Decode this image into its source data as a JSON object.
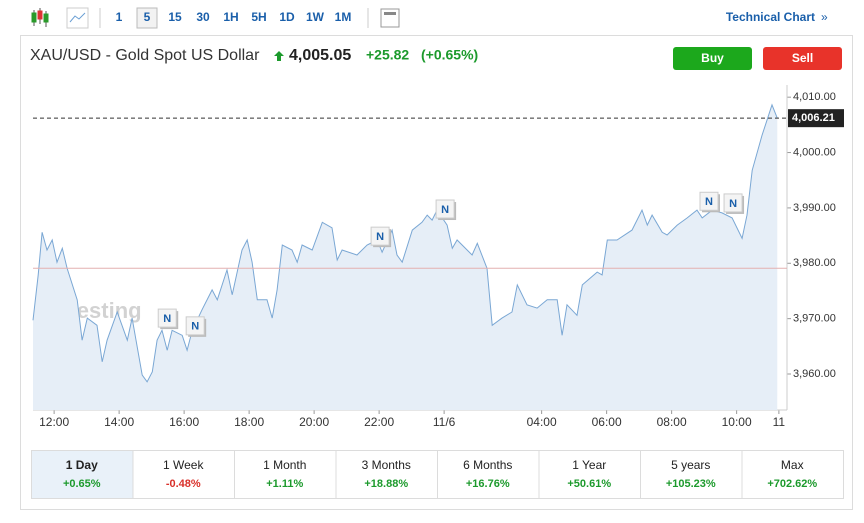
{
  "toolbar": {
    "intervals": [
      "1",
      "5",
      "15",
      "30",
      "1H",
      "5H",
      "1D",
      "1W",
      "1M"
    ],
    "link": "Technical Chart"
  },
  "header": {
    "symbol": "XAU/USD - Gold Spot US Dollar",
    "price": "4,005.05",
    "change": "+25.82",
    "change_pct": "(+0.65%)"
  },
  "buttons": [
    "Buy",
    "Sell"
  ],
  "chart_data": {
    "type": "line",
    "watermark": "Investing",
    "color": "#7aa7d4",
    "x": [
      -0.65,
      -0.49,
      -0.37,
      -0.22,
      -0.06,
      0.09,
      0.25,
      0.4,
      0.71,
      0.86,
      1.02,
      1.32,
      1.48,
      1.63,
      1.94,
      2.25,
      2.4,
      2.71,
      2.86,
      3.02,
      3.17,
      3.32,
      3.48,
      3.63,
      3.94,
      4.09,
      4.25,
      4.55,
      4.86,
      5.02,
      5.32,
      5.48,
      5.78,
      5.94,
      6.09,
      6.25,
      6.55,
      6.71,
      6.86,
      7.02,
      7.32,
      7.48,
      7.63,
      7.94,
      8.25,
      8.55,
      8.71,
      8.86,
      9.32,
      9.63,
      9.94,
      10.09,
      10.4,
      10.55,
      10.71,
      11.02,
      11.32,
      11.48,
      11.63,
      11.78,
      12.09,
      12.25,
      12.4,
      12.86,
      13.02,
      13.32,
      13.48,
      13.78,
      14.09,
      14.25,
      14.55,
      14.86,
      15.17,
      15.48,
      15.63,
      15.78,
      16.09,
      16.25,
      16.71,
      16.86,
      17.02,
      17.32,
      17.78,
      18.09,
      18.25,
      18.4,
      18.71,
      18.86,
      19.17,
      19.48,
      19.78,
      19.94,
      20.25,
      20.55,
      20.86,
      21.17,
      21.32,
      21.48,
      21.78,
      22.09,
      22.25
    ],
    "series": [
      {
        "values": [
          3969.7,
          3977.9,
          3985.6,
          3982.4,
          3984.2,
          3980.2,
          3982.7,
          3979.1,
          3973.4,
          3966.1,
          3970.1,
          3968.8,
          3962.2,
          3966.1,
          3971.2,
          3966.1,
          3970.1,
          3959.8,
          3958.6,
          3960.4,
          3966.1,
          3967.9,
          3964.3,
          3967.9,
          3967.0,
          3964.3,
          3967.9,
          3971.6,
          3975.2,
          3973.4,
          3978.8,
          3974.3,
          3982.4,
          3984.2,
          3980.2,
          3973.4,
          3973.4,
          3970.1,
          3975.2,
          3983.3,
          3982.4,
          3980.2,
          3983.3,
          3982.4,
          3987.4,
          3986.4,
          3980.6,
          3982.4,
          3981.5,
          3983.3,
          3984.2,
          3982.0,
          3986.0,
          3981.5,
          3980.2,
          3986.0,
          3987.4,
          3988.7,
          3987.8,
          3989.6,
          3986.9,
          3982.7,
          3984.2,
          3981.5,
          3983.6,
          3979.1,
          3968.8,
          3970.1,
          3971.2,
          3976.1,
          3972.5,
          3971.9,
          3973.4,
          3973.4,
          3967.0,
          3972.5,
          3970.6,
          3976.1,
          3978.4,
          3977.9,
          3984.2,
          3984.2,
          3986.0,
          3989.6,
          3986.9,
          3988.7,
          3985.6,
          3985.1,
          3986.9,
          3988.2,
          3989.6,
          3988.2,
          3989.6,
          3989.1,
          3988.2,
          3984.5,
          3988.7,
          3996.8,
          4003.1,
          4008.6,
          4006.21
        ]
      }
    ],
    "xlim": [
      -0.65,
      22.55
    ],
    "xticks": [
      {
        "value": 0,
        "label": "12:00"
      },
      {
        "value": 2,
        "label": "14:00"
      },
      {
        "value": 4,
        "label": "16:00"
      },
      {
        "value": 6,
        "label": "18:00"
      },
      {
        "value": 8,
        "label": "20:00"
      },
      {
        "value": 10,
        "label": "22:00"
      },
      {
        "value": 12,
        "label": "11/6"
      },
      {
        "value": 15,
        "label": "04:00"
      },
      {
        "value": 17,
        "label": "06:00"
      },
      {
        "value": 19,
        "label": "08:00"
      },
      {
        "value": 21,
        "label": "10:00"
      },
      {
        "value": 22.3,
        "label": "11"
      }
    ],
    "ylim": [
      3953.5,
      4012.2
    ],
    "yticks": [
      {
        "value": 3960,
        "label": "3,960.00"
      },
      {
        "value": 3970,
        "label": "3,970.00"
      },
      {
        "value": 3980,
        "label": "3,980.00"
      },
      {
        "value": 3990,
        "label": "3,990.00"
      },
      {
        "value": 4000,
        "label": "4,000.00"
      },
      {
        "value": 4010,
        "label": "4,010.00"
      }
    ],
    "last_price": {
      "value": 4006.21,
      "label": "4,006.21"
    },
    "prev_close": 3979.1,
    "annotations": [
      {
        "x": 3.48,
        "y": 3970.1,
        "text": "N"
      },
      {
        "x": 4.34,
        "y": 3968.7,
        "text": "N"
      },
      {
        "x": 10.03,
        "y": 3984.9,
        "text": "N"
      },
      {
        "x": 12.03,
        "y": 3989.8,
        "text": "N"
      },
      {
        "x": 20.15,
        "y": 3991.2,
        "text": "N"
      },
      {
        "x": 20.89,
        "y": 3990.9,
        "text": "N"
      }
    ]
  },
  "periods": [
    {
      "label": "1 Day",
      "change": "+0.65%"
    },
    {
      "label": "1 Week",
      "change": "-0.48%"
    },
    {
      "label": "1 Month",
      "change": "+1.11%"
    },
    {
      "label": "3 Months",
      "change": "+18.88%"
    },
    {
      "label": "6 Months",
      "change": "+16.76%"
    },
    {
      "label": "1 Year",
      "change": "+50.61%"
    },
    {
      "label": "5 years",
      "change": "+105.23%"
    },
    {
      "label": "Max",
      "change": "+702.62%"
    }
  ]
}
